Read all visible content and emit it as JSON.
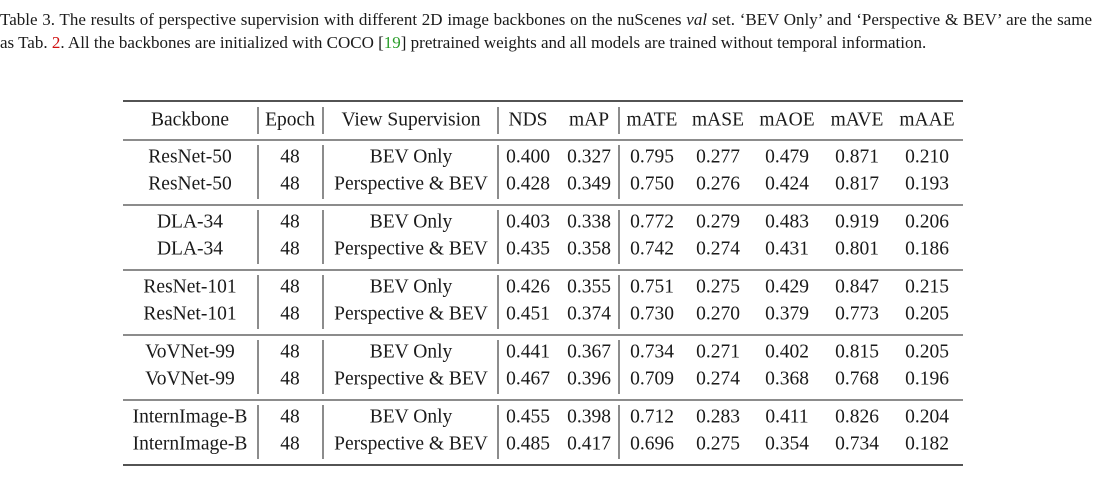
{
  "caption": [
    "Table 3. The results of perspective supervision with different 2D image backbones on the nuScenes ",
    "val",
    " set. ‘BEV Only’ and ‘Perspective & BEV’ are the same as Tab. ",
    "2",
    ". All the backbones are initialized with COCO [",
    "19",
    "] pretrained weights and all models are trained without temporal information."
  ],
  "table": {
    "header": [
      "Backbone",
      "Epoch",
      "View Supervision",
      "NDS",
      "mAP",
      "mATE",
      "mASE",
      "mAOE",
      "mAVE",
      "mAAE"
    ],
    "rows": [
      [
        "ResNet-50",
        "48",
        "BEV Only",
        "0.400",
        "0.327",
        "0.795",
        "0.277",
        "0.479",
        "0.871",
        "0.210"
      ],
      [
        "ResNet-50",
        "48",
        "Perspective & BEV",
        "0.428",
        "0.349",
        "0.750",
        "0.276",
        "0.424",
        "0.817",
        "0.193"
      ],
      [
        "DLA-34",
        "48",
        "BEV Only",
        "0.403",
        "0.338",
        "0.772",
        "0.279",
        "0.483",
        "0.919",
        "0.206"
      ],
      [
        "DLA-34",
        "48",
        "Perspective & BEV",
        "0.435",
        "0.358",
        "0.742",
        "0.274",
        "0.431",
        "0.801",
        "0.186"
      ],
      [
        "ResNet-101",
        "48",
        "BEV Only",
        "0.426",
        "0.355",
        "0.751",
        "0.275",
        "0.429",
        "0.847",
        "0.215"
      ],
      [
        "ResNet-101",
        "48",
        "Perspective & BEV",
        "0.451",
        "0.374",
        "0.730",
        "0.270",
        "0.379",
        "0.773",
        "0.205"
      ],
      [
        "VoVNet-99",
        "48",
        "BEV Only",
        "0.441",
        "0.367",
        "0.734",
        "0.271",
        "0.402",
        "0.815",
        "0.205"
      ],
      [
        "VoVNet-99",
        "48",
        "Perspective & BEV",
        "0.467",
        "0.396",
        "0.709",
        "0.274",
        "0.368",
        "0.768",
        "0.196"
      ],
      [
        "InternImage-B",
        "48",
        "BEV Only",
        "0.455",
        "0.398",
        "0.712",
        "0.283",
        "0.411",
        "0.826",
        "0.204"
      ],
      [
        "InternImage-B",
        "48",
        "Perspective & BEV",
        "0.485",
        "0.417",
        "0.696",
        "0.275",
        "0.354",
        "0.734",
        "0.182"
      ]
    ]
  }
}
